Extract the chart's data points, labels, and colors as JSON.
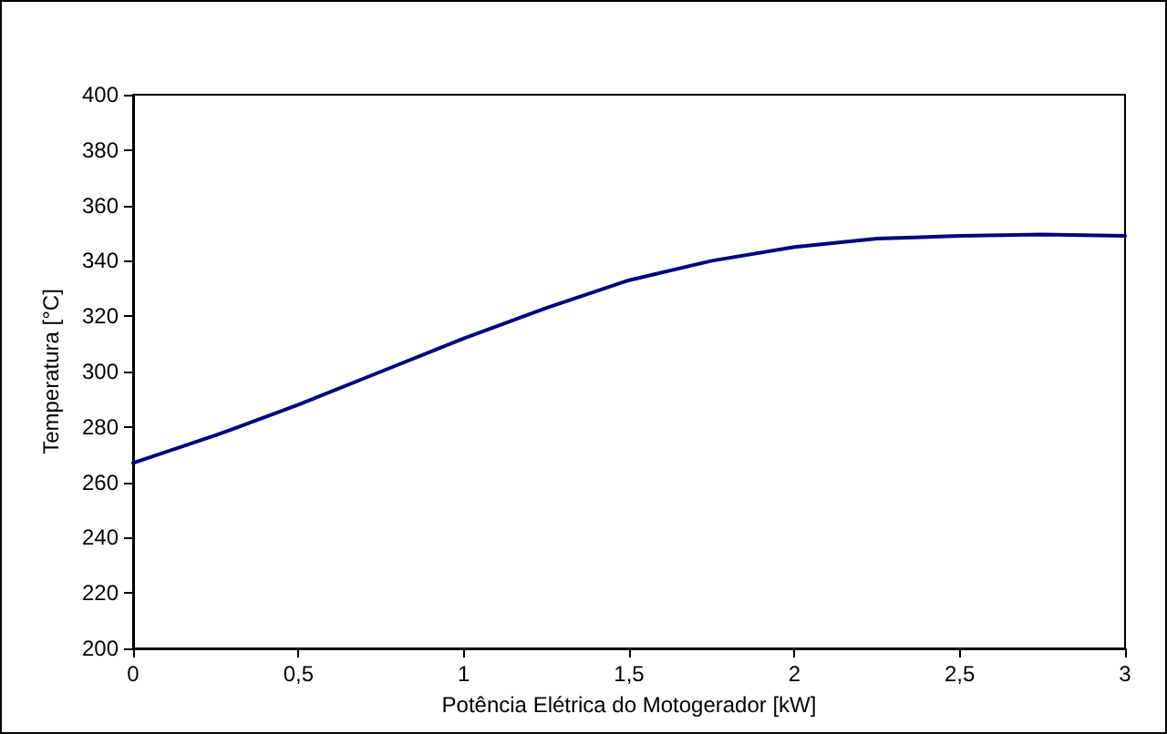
{
  "chart_data": {
    "type": "line",
    "xlabel": "Potência Elétrica do Motogerador [kW]",
    "ylabel": "Temperatura [°C]",
    "x": [
      0,
      0.25,
      0.5,
      0.75,
      1,
      1.25,
      1.5,
      1.75,
      2,
      2.25,
      2.5,
      2.75,
      3
    ],
    "series": [
      {
        "color": "#000080",
        "values": [
          267,
          277,
          288,
          300,
          312,
          323,
          333,
          340,
          345,
          348,
          349,
          349.5,
          349
        ]
      }
    ],
    "xlim": [
      0,
      3
    ],
    "xticks": [
      0,
      {
        "value": 0.5,
        "label": "0,5"
      },
      1,
      {
        "value": 1.5,
        "label": "1,5"
      },
      2,
      {
        "value": 2.5,
        "label": "2,5"
      },
      3
    ],
    "ylim": [
      200,
      400
    ],
    "yticks": [
      200,
      220,
      240,
      260,
      280,
      300,
      320,
      340,
      360,
      380,
      400
    ],
    "grid": false,
    "marker": "none",
    "line_style": "solid"
  }
}
